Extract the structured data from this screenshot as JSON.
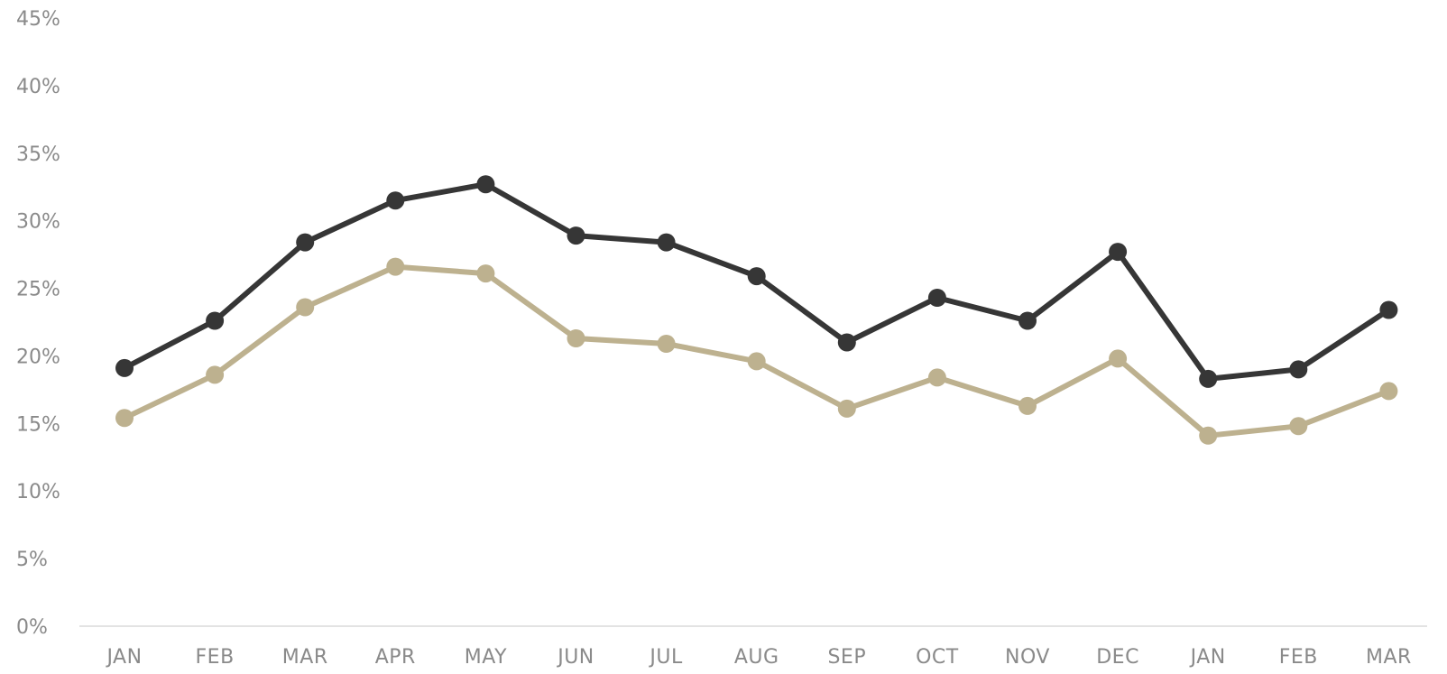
{
  "chart_data": {
    "type": "line",
    "title": "",
    "xlabel": "",
    "ylabel": "",
    "categories": [
      "JAN",
      "FEB",
      "MAR",
      "APR",
      "MAY",
      "JUN",
      "JUL",
      "AUG",
      "SEP",
      "OCT",
      "NOV",
      "DEC",
      "JAN",
      "FEB",
      "MAR"
    ],
    "y_ticks": [
      "0%",
      "5%",
      "10%",
      "15%",
      "20%",
      "25%",
      "30%",
      "35%",
      "40%",
      "45%"
    ],
    "ylim": [
      0,
      45
    ],
    "grid": false,
    "legend": "none",
    "series": [
      {
        "color": "#363636",
        "values": [
          19.1,
          22.6,
          28.4,
          31.5,
          32.7,
          28.9,
          28.4,
          25.9,
          21.0,
          24.3,
          22.6,
          27.7,
          18.3,
          19.0,
          23.4
        ]
      },
      {
        "color": "#bdb18f",
        "values": [
          15.4,
          18.6,
          23.6,
          26.6,
          26.1,
          21.3,
          20.9,
          19.6,
          16.1,
          18.4,
          16.3,
          19.8,
          14.1,
          14.8,
          17.4
        ]
      }
    ]
  }
}
